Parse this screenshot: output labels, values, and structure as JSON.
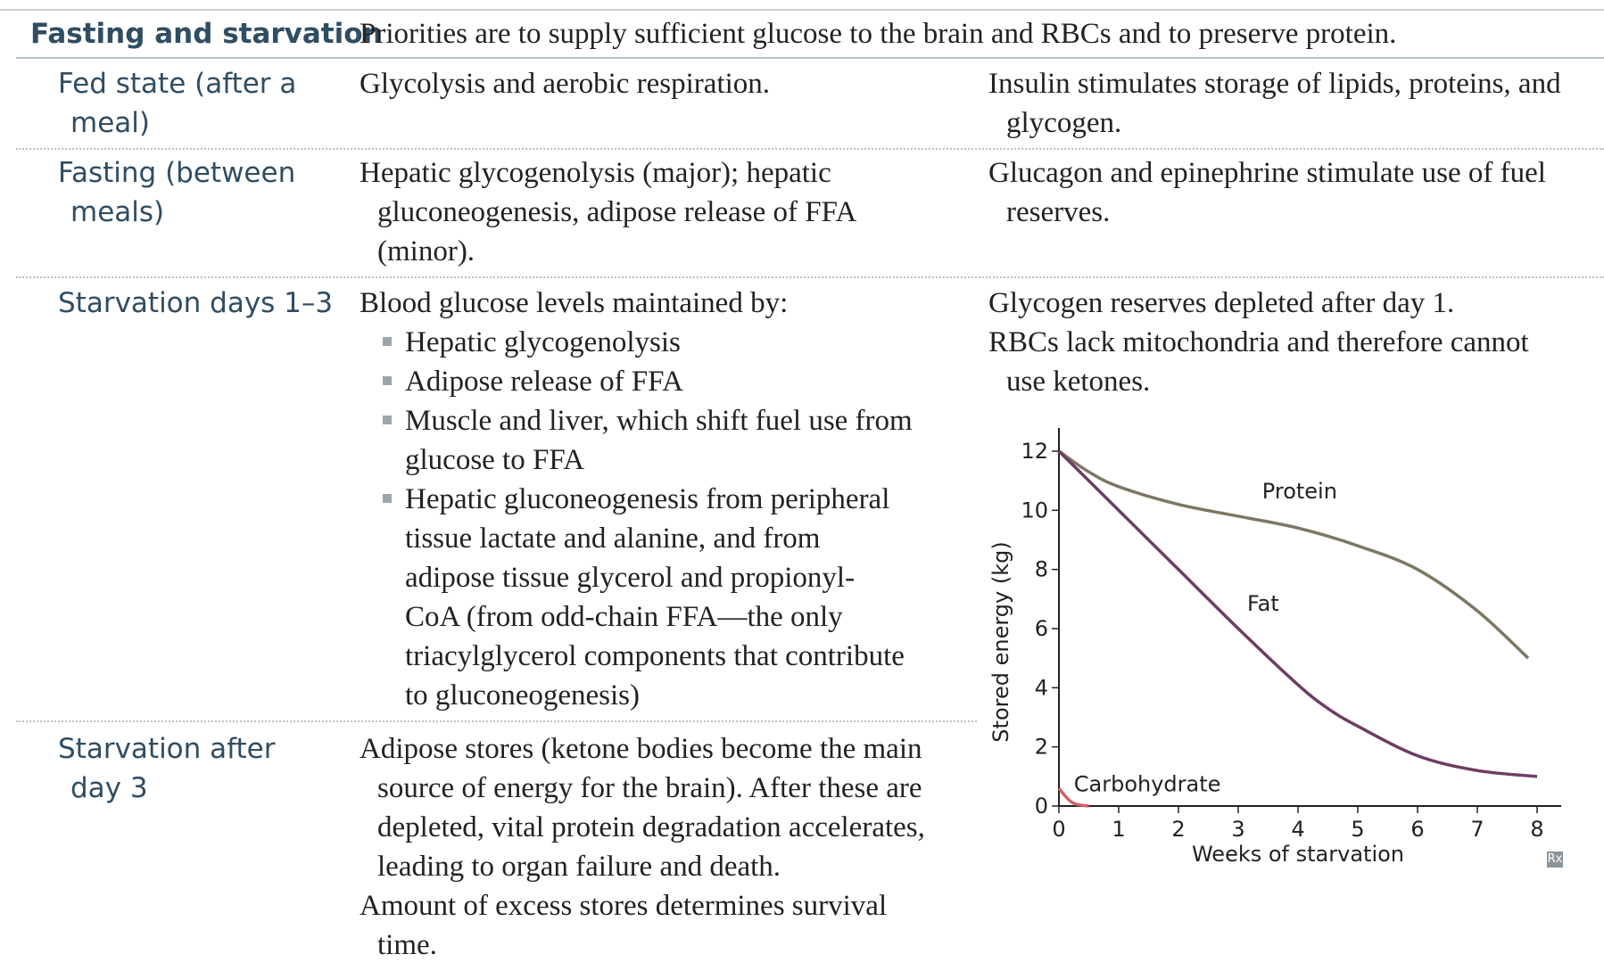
{
  "header": {
    "label": "Fasting and starvation",
    "text": "Priorities are to supply sufficient glucose to the brain and RBCs and to preserve protein."
  },
  "rows": [
    {
      "label_lines": [
        "Fed state (after a",
        "meal)"
      ],
      "col2_lines": [
        "Glycolysis and aerobic respiration."
      ],
      "col3_lines": [
        "Insulin stimulates storage of lipids, proteins, and",
        "glycogen."
      ]
    },
    {
      "label_lines": [
        "Fasting (between",
        "meals)"
      ],
      "col2_lines": [
        "Hepatic glycogenolysis (major); hepatic",
        "gluconeogenesis, adipose release of FFA",
        "(minor)."
      ],
      "col3_lines": [
        "Glucagon and epinephrine stimulate use of fuel",
        "reserves."
      ]
    },
    {
      "label_lines": [
        "Starvation days 1–3"
      ],
      "col2_intro": "Blood glucose levels maintained by:",
      "col2_bullets": [
        [
          "Hepatic glycogenolysis"
        ],
        [
          "Adipose release of FFA"
        ],
        [
          "Muscle and liver, which shift fuel use from",
          "glucose to FFA"
        ],
        [
          "Hepatic gluconeogenesis from peripheral",
          "tissue lactate and alanine, and from",
          "adipose tissue glycerol and propionyl-",
          "CoA (from odd-chain FFA—the only",
          "triacylglycerol components that contribute",
          "to gluconeogenesis)"
        ]
      ],
      "col3_lines_a": [
        "Glycogen reserves depleted after day 1."
      ],
      "col3_lines_b": [
        "RBCs lack mitochondria and therefore cannot",
        "use ketones."
      ]
    },
    {
      "label_lines": [
        "Starvation after",
        "day 3"
      ],
      "col2_lines_a": [
        "Adipose stores (ketone bodies become the main",
        "source of energy for the brain). After these are",
        "depleted, vital protein degradation accelerates,",
        "leading to organ failure and death."
      ],
      "col2_lines_b": [
        "Amount of excess stores determines survival",
        "time."
      ]
    }
  ],
  "logo_text": "Rx",
  "chart_data": {
    "type": "line",
    "title": "",
    "xlabel": "Weeks of starvation",
    "ylabel": "Stored energy (kg)",
    "xlim": [
      0,
      8
    ],
    "ylim": [
      0,
      12
    ],
    "xticks": [
      "0",
      "1",
      "2",
      "3",
      "4",
      "5",
      "6",
      "7",
      "8"
    ],
    "yticks": [
      "0",
      "2",
      "4",
      "6",
      "8",
      "10",
      "12"
    ],
    "series": [
      {
        "name": "Protein",
        "color": "#7d7762",
        "x": [
          0,
          0.5,
          1,
          2,
          3,
          4,
          5,
          6,
          7,
          7.85
        ],
        "y": [
          12,
          11.3,
          10.8,
          10.2,
          9.8,
          9.4,
          8.8,
          8.0,
          6.6,
          5.0
        ]
      },
      {
        "name": "Fat",
        "color": "#6e3d63",
        "x": [
          0,
          1,
          2,
          3,
          4,
          4.5,
          5,
          6,
          7,
          8
        ],
        "y": [
          12,
          10.0,
          8.0,
          6.0,
          4.1,
          3.3,
          2.7,
          1.7,
          1.2,
          1.0
        ]
      },
      {
        "name": "Carbohydrate",
        "color": "#d06068",
        "x": [
          0,
          0.1,
          0.2,
          0.3,
          0.5
        ],
        "y": [
          0.6,
          0.35,
          0.15,
          0.05,
          0
        ]
      }
    ]
  }
}
